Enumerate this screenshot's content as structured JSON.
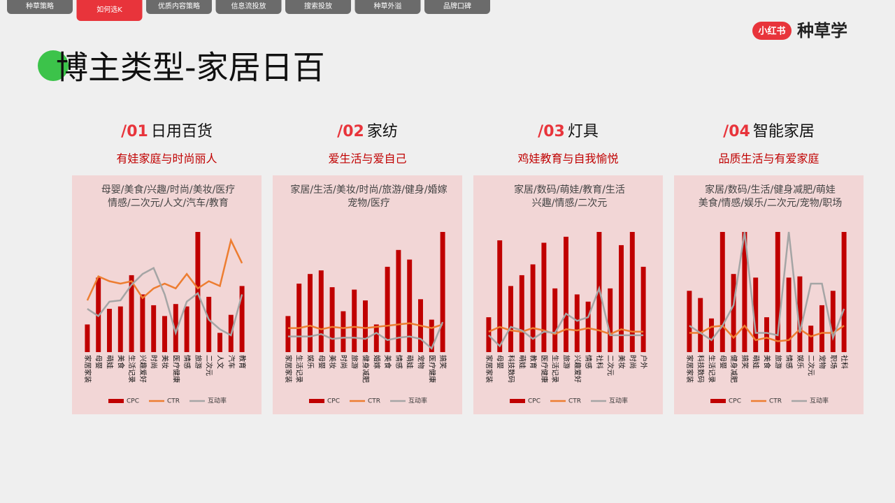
{
  "tabs": [
    "种草策略",
    "如何选K",
    "优质内容策略",
    "信息流投放",
    "搜索投放",
    "种草外溢",
    "品牌口碑"
  ],
  "logo": {
    "badge": "小红书",
    "text": "种草学"
  },
  "title": "博主类型-家居日百",
  "panels": [
    {
      "number": "/01",
      "name": "日用百货",
      "subtitle": "有娃家庭与时尚丽人",
      "keywords": [
        "母婴/美食/兴趣/时尚/美妆/医疗",
        "情感/二次元/人文/汽车/教育"
      ]
    },
    {
      "number": "/02",
      "name": "家纺",
      "subtitle": "爱生活与爱自己",
      "keywords": [
        "家居/生活/美妆/时尚/旅游/健身/婚嫁",
        "宠物/医疗"
      ]
    },
    {
      "number": "/03",
      "name": "灯具",
      "subtitle": "鸡娃教育与自我愉悦",
      "keywords": [
        "家居/数码/萌娃/教育/生活",
        "兴趣/情感/二次元"
      ]
    },
    {
      "number": "/04",
      "name": "智能家居",
      "subtitle": "品质生活与有爱家庭",
      "keywords": [
        "家居/数码/生活/健身减肥/萌娃",
        "美食/情感/娱乐/二次元/宠物/职场"
      ]
    }
  ],
  "chart_data": [
    {
      "type": "bar",
      "ylim": [
        0,
        100
      ],
      "categories": [
        "家居家装",
        "母婴",
        "萌娃",
        "美食",
        "生活记录",
        "兴趣爱好",
        "时尚",
        "美妆",
        "医疗健康",
        "情感",
        "旅游",
        "二次元",
        "人文",
        "汽车",
        "教育"
      ],
      "series": [
        {
          "name": "CPC",
          "color": "#c00000",
          "type": "bar",
          "values": [
            23,
            62,
            36,
            38,
            64,
            48,
            39,
            30,
            40,
            38,
            100,
            46,
            16,
            31,
            55
          ]
        },
        {
          "name": "CTR",
          "color": "#ed7d31",
          "type": "line",
          "values": [
            43,
            63,
            59,
            57,
            59,
            45,
            53,
            57,
            53,
            65,
            53,
            59,
            55,
            93,
            74
          ]
        },
        {
          "name": "互动率",
          "color": "#a5a5a5",
          "type": "line",
          "values": [
            36,
            30,
            42,
            43,
            56,
            65,
            70,
            48,
            16,
            42,
            49,
            27,
            19,
            14,
            48
          ]
        }
      ]
    },
    {
      "type": "bar",
      "ylim": [
        0,
        100
      ],
      "categories": [
        "家居家装",
        "生活记录",
        "娱乐",
        "母婴",
        "美妆",
        "时尚",
        "旅游",
        "健身减肥",
        "婚嫁",
        "美食",
        "情感",
        "萌娃",
        "宠物",
        "医疗健康",
        "搞笑"
      ],
      "series": [
        {
          "name": "CPC",
          "color": "#c00000",
          "type": "bar",
          "values": [
            30,
            57,
            65,
            68,
            54,
            34,
            52,
            43,
            23,
            71,
            85,
            77,
            44,
            27,
            100
          ]
        },
        {
          "name": "CTR",
          "color": "#ed7d31",
          "type": "line",
          "values": [
            20,
            20,
            22,
            19,
            21,
            20,
            21,
            20,
            21,
            22,
            23,
            24,
            22,
            20,
            23
          ]
        },
        {
          "name": "互动率",
          "color": "#a5a5a5",
          "type": "line",
          "values": [
            13,
            13,
            13,
            15,
            11,
            12,
            12,
            11,
            16,
            10,
            12,
            13,
            11,
            3,
            25
          ]
        }
      ]
    },
    {
      "type": "bar",
      "ylim": [
        0,
        100
      ],
      "categories": [
        "家居家装",
        "母婴",
        "科技数码",
        "萌娃",
        "教育",
        "医疗健康",
        "生活记录",
        "旅游",
        "兴趣爱好",
        "情感",
        "社科",
        "二次元",
        "美妆",
        "时尚",
        "户外"
      ],
      "series": [
        {
          "name": "CPC",
          "color": "#c00000",
          "type": "bar",
          "values": [
            29,
            93,
            55,
            64,
            73,
            91,
            53,
            96,
            48,
            42,
            100,
            53,
            89,
            100,
            71
          ]
        },
        {
          "name": "CTR",
          "color": "#ed7d31",
          "type": "line",
          "values": [
            17,
            21,
            18,
            17,
            20,
            18,
            15,
            19,
            18,
            20,
            18,
            15,
            19,
            17,
            17
          ]
        },
        {
          "name": "互动率",
          "color": "#a5a5a5",
          "type": "line",
          "values": [
            14,
            5,
            21,
            18,
            11,
            17,
            16,
            32,
            26,
            29,
            53,
            14,
            14,
            14,
            14
          ]
        }
      ]
    },
    {
      "type": "bar",
      "ylim": [
        0,
        100
      ],
      "categories": [
        "家居家装",
        "科技数码",
        "生活记录",
        "母婴",
        "健身减肥",
        "搞笑",
        "萌娃",
        "美食",
        "旅游",
        "情感",
        "娱乐",
        "二次元",
        "宠物",
        "职场",
        "社科"
      ],
      "series": [
        {
          "name": "CPC",
          "color": "#c00000",
          "type": "bar",
          "values": [
            51,
            45,
            28,
            100,
            65,
            100,
            62,
            29,
            100,
            62,
            63,
            22,
            39,
            51,
            100
          ]
        },
        {
          "name": "CTR",
          "color": "#ed7d31",
          "type": "line",
          "values": [
            16,
            16,
            21,
            22,
            12,
            22,
            10,
            12,
            9,
            10,
            19,
            13,
            16,
            16,
            22
          ]
        },
        {
          "name": "互动率",
          "color": "#a5a5a5",
          "type": "line",
          "values": [
            22,
            16,
            10,
            22,
            39,
            100,
            16,
            16,
            14,
            100,
            16,
            57,
            57,
            12,
            36
          ]
        }
      ]
    }
  ]
}
